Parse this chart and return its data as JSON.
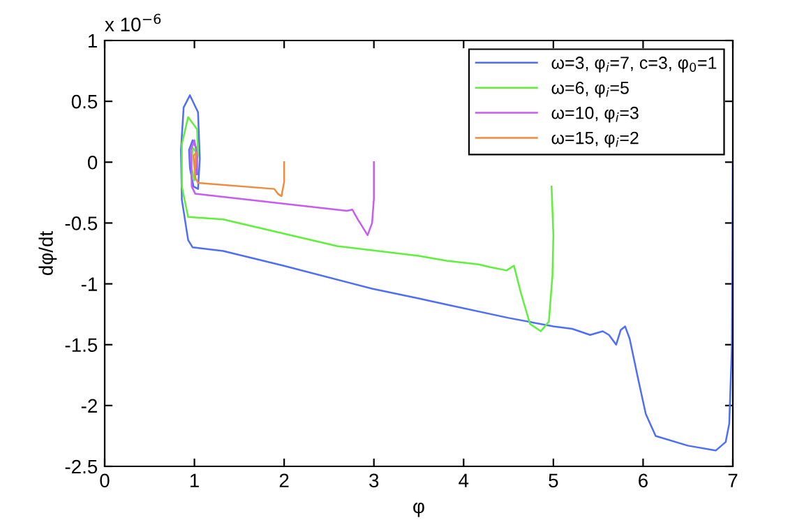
{
  "chart_data": {
    "type": "line",
    "xlabel": "φ",
    "ylabel": "dφ/dt",
    "annotations": [
      "x 10$^{−6}$"
    ],
    "xlim": [
      0,
      7
    ],
    "ylim": [
      -2.5,
      1
    ],
    "xticks": [
      0,
      1,
      2,
      3,
      4,
      5,
      6,
      7
    ],
    "yticks": [
      -2.5,
      -2,
      -1.5,
      -1,
      -0.5,
      0,
      0.5,
      1
    ],
    "grid": false,
    "legend": "top right",
    "marker": "none",
    "line_style": "solid",
    "series": [
      {
        "name": "ω=3, φ$_{i}$=7, c=3, φ$_{0}$=1",
        "color": "#4f6ef7",
        "x": [
          7.0,
          6.99,
          6.96,
          6.92,
          6.81,
          6.5,
          6.14,
          6.03,
          5.95,
          5.85,
          5.8,
          5.75,
          5.7,
          5.62,
          5.55,
          5.41,
          5.21,
          5.0,
          4.5,
          3.81,
          3.5,
          2.98,
          1.99,
          1.32,
          0.98,
          0.93,
          0.86,
          0.85,
          0.88,
          0.95,
          1.04,
          1.06,
          1.04,
          0.99,
          0.95,
          0.94,
          0.98,
          1.03,
          1.03,
          1.0
        ],
        "values": [
          0.0,
          -1.5,
          -2.15,
          -2.3,
          -2.37,
          -2.33,
          -2.25,
          -2.07,
          -1.8,
          -1.45,
          -1.35,
          -1.38,
          -1.5,
          -1.42,
          -1.39,
          -1.42,
          -1.37,
          -1.35,
          -1.28,
          -1.17,
          -1.12,
          -1.04,
          -0.85,
          -0.73,
          -0.7,
          -0.64,
          -0.31,
          0.1,
          0.45,
          0.55,
          0.41,
          0.03,
          -0.22,
          -0.2,
          -0.05,
          0.1,
          0.18,
          0.1,
          -0.1,
          0.0
        ]
      },
      {
        "name": "ω=6, φ$_{i}$=5",
        "color": "#5ef03a",
        "x": [
          4.98,
          5.0,
          4.99,
          4.95,
          4.86,
          4.74,
          4.64,
          4.56,
          4.48,
          4.28,
          4.17,
          3.81,
          3.5,
          2.59,
          1.32,
          0.93,
          0.86,
          0.86,
          0.93,
          1.03,
          1.04,
          1.0,
          0.97,
          0.98,
          1.02,
          1.01
        ],
        "values": [
          -0.2,
          -0.6,
          -0.93,
          -1.31,
          -1.39,
          -1.33,
          -1.08,
          -0.85,
          -0.89,
          -0.86,
          -0.84,
          -0.81,
          -0.77,
          -0.69,
          -0.47,
          -0.45,
          -0.2,
          0.15,
          0.37,
          0.27,
          0.06,
          -0.15,
          -0.05,
          0.12,
          0.08,
          0.0
        ]
      },
      {
        "name": "ω=10, φ$_{i}$=3",
        "color": "#c65cf2",
        "x": [
          3.0,
          3.0,
          2.98,
          2.93,
          2.82,
          2.76,
          2.7,
          1.01,
          0.97,
          0.96,
          1.0,
          1.03,
          1.02,
          1.0
        ],
        "values": [
          0.0,
          -0.3,
          -0.5,
          -0.6,
          -0.47,
          -0.39,
          -0.4,
          -0.26,
          -0.2,
          0.1,
          0.18,
          0.05,
          -0.1,
          0.0
        ]
      },
      {
        "name": "ω=15, φ$_{i}$=2",
        "color": "#f08a3c",
        "x": [
          2.0,
          2.0,
          1.97,
          1.93,
          1.89,
          1.04,
          1.01,
          0.99,
          1.02,
          1.01,
          1.0
        ],
        "values": [
          0.0,
          -0.16,
          -0.28,
          -0.26,
          -0.22,
          -0.17,
          -0.13,
          0.05,
          0.08,
          -0.05,
          0.0
        ]
      }
    ]
  }
}
